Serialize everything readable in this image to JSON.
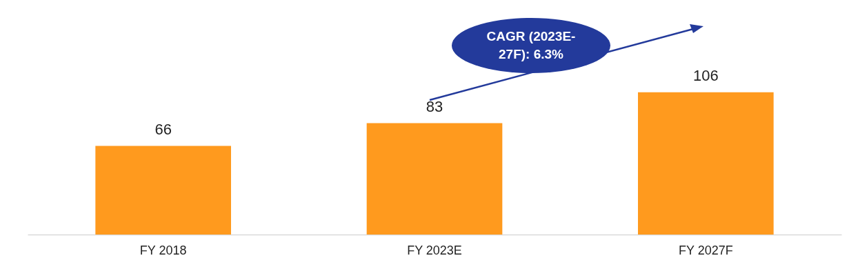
{
  "chart_data": {
    "type": "bar",
    "categories": [
      "FY 2018",
      "FY 2023E",
      "FY 2027F"
    ],
    "values": [
      66,
      83,
      106
    ],
    "color": "#ff9a1e",
    "data_labels": true,
    "annotations": [
      "CAGR (2023E-27F): 6.3%"
    ]
  }
}
